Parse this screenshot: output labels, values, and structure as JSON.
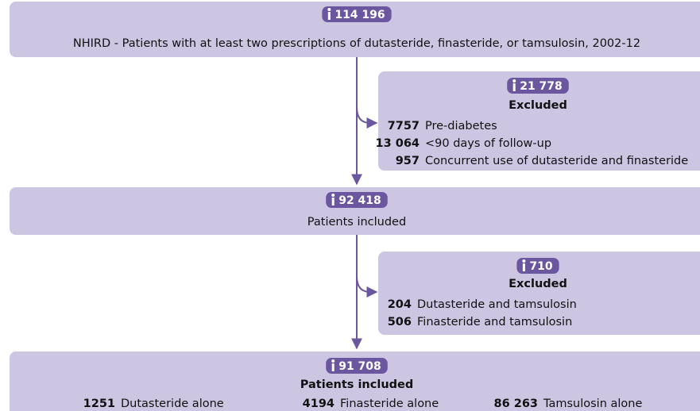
{
  "boxes": [
    {
      "count": "114 196",
      "text": "NHIRD - Patients with at least two prescriptions of dutasteride, finasteride, or tamsulosin, 2002-12"
    },
    {
      "count": "21 778",
      "title": "Excluded",
      "items": [
        {
          "count": "7757",
          "label": "Pre-diabetes"
        },
        {
          "count": "13 064",
          "label": "<90 days of follow-up"
        },
        {
          "count": "957",
          "label": "Concurrent use of dutasteride and finasteride"
        }
      ]
    },
    {
      "count": "92 418",
      "text": "Patients included"
    },
    {
      "count": "710",
      "title": "Excluded",
      "items": [
        {
          "count": "204",
          "label": "Dutasteride and tamsulosin"
        },
        {
          "count": "506",
          "label": "Finasteride and tamsulosin"
        }
      ]
    },
    {
      "count": "91 708",
      "title": "Patients included",
      "items": [
        {
          "count": "1251",
          "label": "Dutasteride alone"
        },
        {
          "count": "4194",
          "label": "Finasteride alone"
        },
        {
          "count": "86 263",
          "label": "Tamsulosin alone"
        }
      ]
    }
  ]
}
